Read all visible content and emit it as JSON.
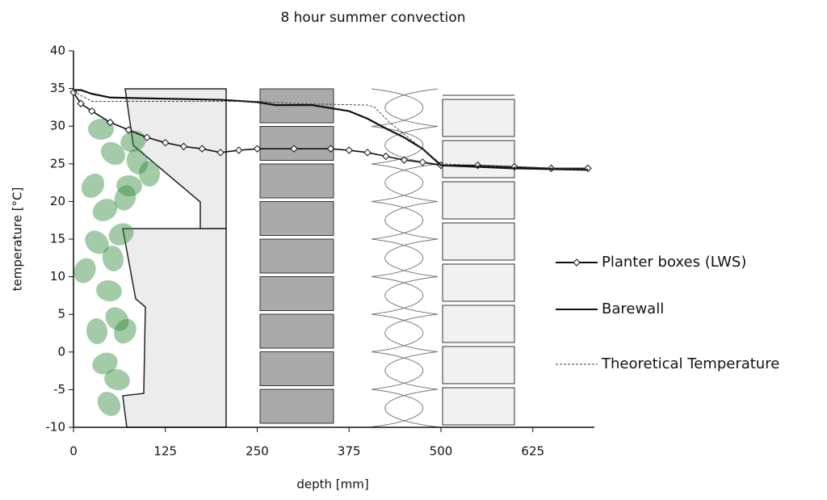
{
  "chart_data": {
    "type": "line",
    "title": "8 hour summer convection",
    "x_label": "depth [mm]",
    "y_label": "temperature [°C]",
    "xlim": [
      0,
      700
    ],
    "xticks": [
      0,
      125,
      250,
      375,
      500,
      625
    ],
    "ylim": [
      -10,
      40
    ],
    "yticks": [
      -10,
      -5,
      0,
      5,
      10,
      15,
      20,
      25,
      30,
      35,
      40
    ],
    "series": [
      {
        "name": "Planter boxes (LWS)",
        "color": "#111111",
        "marker": "diamond",
        "x": [
          0,
          10,
          25,
          50,
          75,
          100,
          125,
          150,
          175,
          200,
          225,
          250,
          300,
          350,
          375,
          400,
          425,
          450,
          475,
          500,
          550,
          600,
          650,
          700
        ],
        "values": [
          34.5,
          33,
          32,
          30.5,
          29.5,
          28.5,
          27.8,
          27.3,
          27,
          26.5,
          26.8,
          27,
          27,
          27,
          26.8,
          26.5,
          26,
          25.5,
          25.2,
          24.8,
          24.8,
          24.6,
          24.4,
          24.4
        ]
      },
      {
        "name": "Barewall",
        "color": "#111111",
        "x": [
          0,
          10,
          25,
          50,
          100,
          200,
          250,
          275,
          325,
          375,
          400,
          425,
          450,
          475,
          500,
          600,
          700
        ],
        "values": [
          34.8,
          34.8,
          34.3,
          33.8,
          33.7,
          33.5,
          33.2,
          32.8,
          32.8,
          32,
          31,
          29.7,
          28.5,
          27,
          24.8,
          24.4,
          24.2
        ]
      },
      {
        "name": "Theoretical Temperature",
        "color": "#444444",
        "dashed": true,
        "x": [
          0,
          25,
          50,
          250,
          300,
          400,
          410,
          430,
          500,
          600,
          700
        ],
        "values": [
          34.6,
          33.3,
          33.3,
          33.3,
          33,
          32.8,
          32.5,
          30.5,
          25,
          24.6,
          24.3
        ]
      }
    ]
  }
}
